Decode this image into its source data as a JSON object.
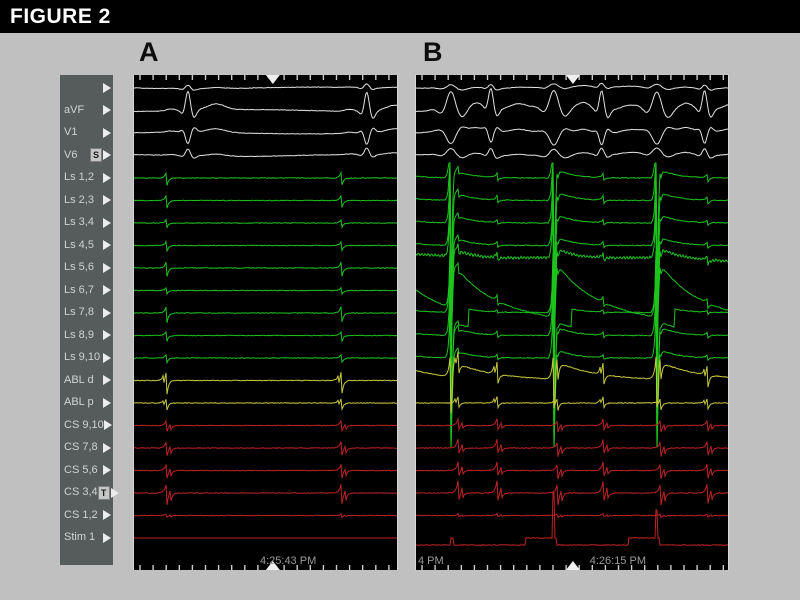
{
  "figure": {
    "title": "FIGURE 2",
    "panel_a_label": "A",
    "panel_b_label": "B"
  },
  "colors": {
    "page_background": "#c0c0c0",
    "titlebar_background": "#000000",
    "panel_background": "#000000",
    "sidebar_background": "#565c5c",
    "surface_trace": "#e2e2e2",
    "ls_trace": "#1dc41d",
    "abl_trace": "#c8c83c",
    "cs_trace": "#bd2323",
    "stim_trace": "#bd2323",
    "cursor_marker": "#efefef",
    "tick_marks": "#cccccc",
    "timestamp_text": "#9a9a9a"
  },
  "chart_data": {
    "type": "line",
    "title": "Intracardiac electrophysiology recordings, panels A and B",
    "channels": [
      {
        "label": "",
        "group": "surface",
        "amp": 4,
        "badge": ""
      },
      {
        "label": "aVF",
        "group": "surface",
        "amp": 20,
        "badge": ""
      },
      {
        "label": "V1",
        "group": "surface",
        "amp": -12,
        "badge": ""
      },
      {
        "label": "V6",
        "group": "surface",
        "amp": 7,
        "badge": "S"
      },
      {
        "label": "Ls 1,2",
        "group": "ls",
        "amp": 8,
        "badge": ""
      },
      {
        "label": "Ls 2,3",
        "group": "ls",
        "amp": 8,
        "badge": ""
      },
      {
        "label": "Ls 3,4",
        "group": "ls",
        "amp": 5,
        "badge": ""
      },
      {
        "label": "Ls 4,5",
        "group": "ls",
        "amp": 6,
        "badge": ""
      },
      {
        "label": "Ls 5,6",
        "group": "ls",
        "amp": 9,
        "badge": "",
        "artifact_b": "wavy"
      },
      {
        "label": "Ls 6,7",
        "group": "ls",
        "amp": 4,
        "badge": "",
        "artifact_b": "square"
      },
      {
        "label": "Ls 7,8",
        "group": "ls",
        "amp": 10,
        "badge": "",
        "artifact_b": "decay"
      },
      {
        "label": "Ls 8,9",
        "group": "ls",
        "amp": 6,
        "badge": ""
      },
      {
        "label": "Ls 9,10",
        "group": "ls",
        "amp": 5,
        "badge": ""
      },
      {
        "label": "ABL d",
        "group": "abl",
        "amp": 14,
        "badge": "",
        "artifact_b": "abl_decay"
      },
      {
        "label": "ABL p",
        "group": "abl",
        "amp": 7,
        "badge": ""
      },
      {
        "label": "CS 9,10",
        "group": "cs",
        "amp": 7,
        "badge": ""
      },
      {
        "label": "CS 7,8",
        "group": "cs",
        "amp": 9,
        "badge": ""
      },
      {
        "label": "CS 5,6",
        "group": "cs",
        "amp": 9,
        "badge": ""
      },
      {
        "label": "CS 3,4",
        "group": "cs",
        "amp": 13,
        "badge": "T"
      },
      {
        "label": "CS 1,2",
        "group": "cs",
        "amp": 2,
        "badge": ""
      },
      {
        "label": "Stim 1",
        "group": "stim",
        "amp": 0,
        "badge": "",
        "artifact_b": "stim"
      }
    ],
    "panels": [
      {
        "id": "A",
        "time_label": "4:25:43 PM",
        "rhythm": "sinus, 2 beats",
        "qrs_fracs": [
          0.205,
          0.885
        ],
        "egm_fracs": [
          0.125,
          0.79
        ],
        "paced_fracs": [],
        "cursor_frac": 0.528
      },
      {
        "id": "B",
        "time_label": "4:26:15 PM",
        "time_label_left": "4 PM",
        "rhythm": "6 beats, 3 with large stimulation artifacts on Ls channels",
        "qrs_fracs": [
          0.112,
          0.24,
          0.442,
          0.595,
          0.772,
          0.925
        ],
        "egm_fracs": [
          0.135,
          0.26,
          0.455,
          0.6,
          0.785,
          0.935
        ],
        "paced_fracs": [
          0.112,
          0.442,
          0.772
        ],
        "cursor_frac": 0.503
      }
    ]
  }
}
